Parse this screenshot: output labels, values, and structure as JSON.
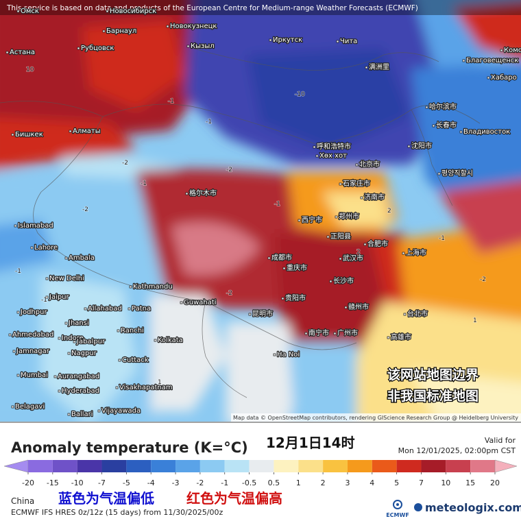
{
  "header": {
    "notice": "This service is based on data and products of the European Centre for Medium-range Weather Forecasts (ECMWF)"
  },
  "map": {
    "labels": [
      "Омск",
      "Новосибирск",
      "Барнаул",
      "Новокузнецк",
      "Рубцовск",
      "Астана",
      "Кызыл",
      "Иркутск",
      "Чита",
      "Благовещенск",
      "Хабаро",
      "Комс",
      "满洲里",
      "哈尔滨市",
      "长春市",
      "沈阳市",
      "Владивосток",
      "Бишкек",
      "Алматы",
      "呼和浩特市",
      "Хөх хот",
      "北京市",
      "평양직할시",
      "石家庄市",
      "济南市",
      "格尔木市",
      "西宁市",
      "郑州市",
      "正阳县",
      "合肥市",
      "上海市",
      "武汉市",
      "成都市",
      "重庆市",
      "长沙市",
      "贵阳市",
      "昆明市",
      "赣州市",
      "台北市",
      "高雄市",
      "广州市",
      "南宁市",
      "Ha Noi",
      "Islamabad",
      "Lahore",
      "Ambala",
      "New Delhi",
      "Jaipur",
      "Jodhpur",
      "Jhansi",
      "Allahabad",
      "Patna",
      "Kathmandu",
      "Guwahati",
      "Ranchi",
      "Kolkata",
      "Ahmedabad",
      "Indore",
      "Jabalpur",
      "Jamnagar",
      "Nagpur",
      "Cuttack",
      "Mumbai",
      "Aurangabad",
      "Hyderabad",
      "Visakhapatnam",
      "Belagavi",
      "Ballari",
      "Vijayawada"
    ],
    "contour_labels": [
      -1,
      -2,
      -10,
      -1,
      -2,
      -1,
      10,
      -2,
      -1,
      2,
      -1,
      -2,
      -1,
      2,
      1,
      -1,
      -2,
      1
    ],
    "attribution": "Map data © OpenStreetMap contributors, rendering GIScience Research Group @ Heidelberg University",
    "disclaimer": [
      "该网站地图边界",
      "非我国标准地图"
    ]
  },
  "legend": {
    "title": "Anomaly temperature (K=°C)",
    "time": "12月1日14时",
    "valid_label": "Valid for",
    "valid_time": "Mon 12/01/2025, 02:00pm CST",
    "ticks": [
      -20,
      -15,
      -10,
      -7,
      -5,
      -4,
      -3,
      -2,
      -1,
      -0.5,
      0.5,
      1,
      2,
      3,
      4,
      5,
      7,
      10,
      15,
      20
    ],
    "colors": [
      "#a58cf0",
      "#8a6be0",
      "#6f52c8",
      "#4a35a8",
      "#2a3fa0",
      "#2c5fc0",
      "#3a80d8",
      "#5aa3e8",
      "#8ccaf2",
      "#b9e3f5",
      "#e8ecef",
      "#fdf2c0",
      "#fbe08a",
      "#f9c240",
      "#f59a1c",
      "#ea5a1a",
      "#cf2a1f",
      "#a61c28",
      "#c8404f",
      "#e07888",
      "#f4b0bc"
    ]
  },
  "footer": {
    "region": "China",
    "note_cold": "蓝色为气温偏低",
    "note_warm": "红色为气温偏高",
    "model": "ECMWF IFS HRES 0z/12z (15 days) from 11/30/2025/00z",
    "logo": "ECMWF",
    "site": "meteologix.com"
  }
}
